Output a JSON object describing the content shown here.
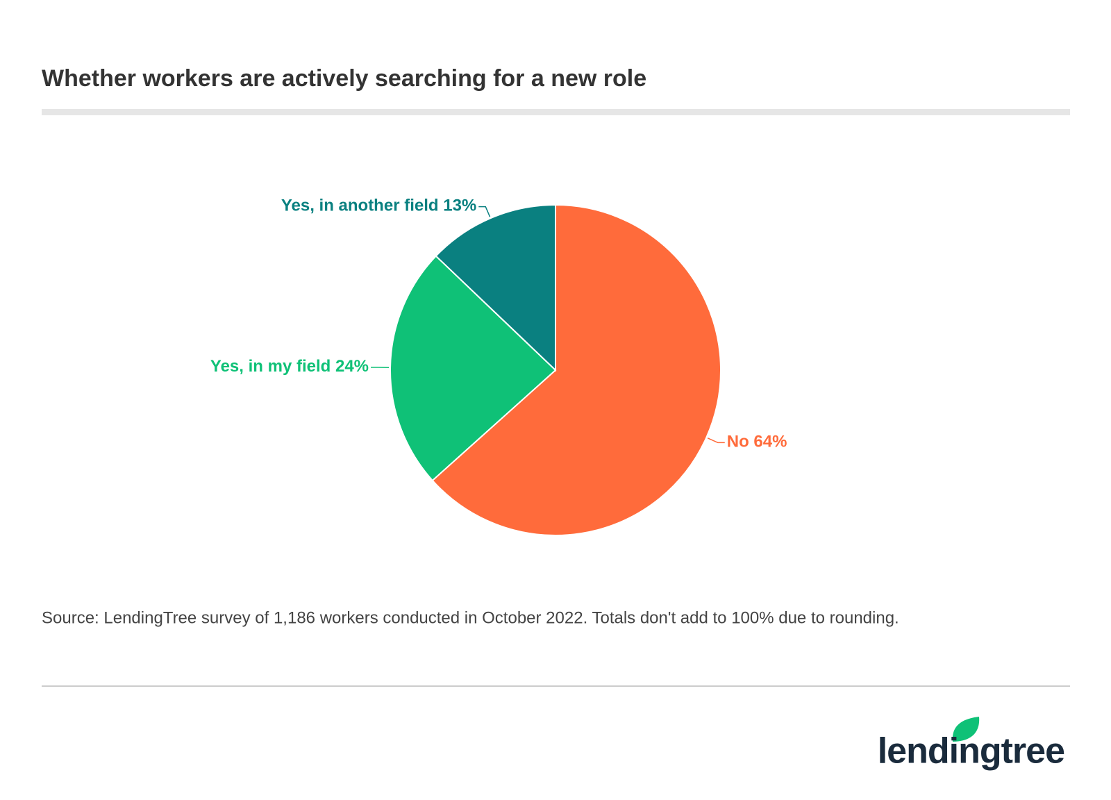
{
  "chart_data": {
    "type": "pie",
    "title": "Whether workers are actively searching for a new role",
    "categories": [
      "No",
      "Yes, in my field",
      "Yes, in another field"
    ],
    "values": [
      64,
      24,
      13
    ],
    "value_labels": [
      "64%",
      "24%",
      "13%"
    ],
    "colors": [
      "#ff6b3b",
      "#0fc177",
      "#0a8080"
    ],
    "source": "Source: LendingTree survey of 1,186 workers conducted in October 2022. Totals don't add to 100% due to rounding.",
    "logo": "lendingtree"
  }
}
